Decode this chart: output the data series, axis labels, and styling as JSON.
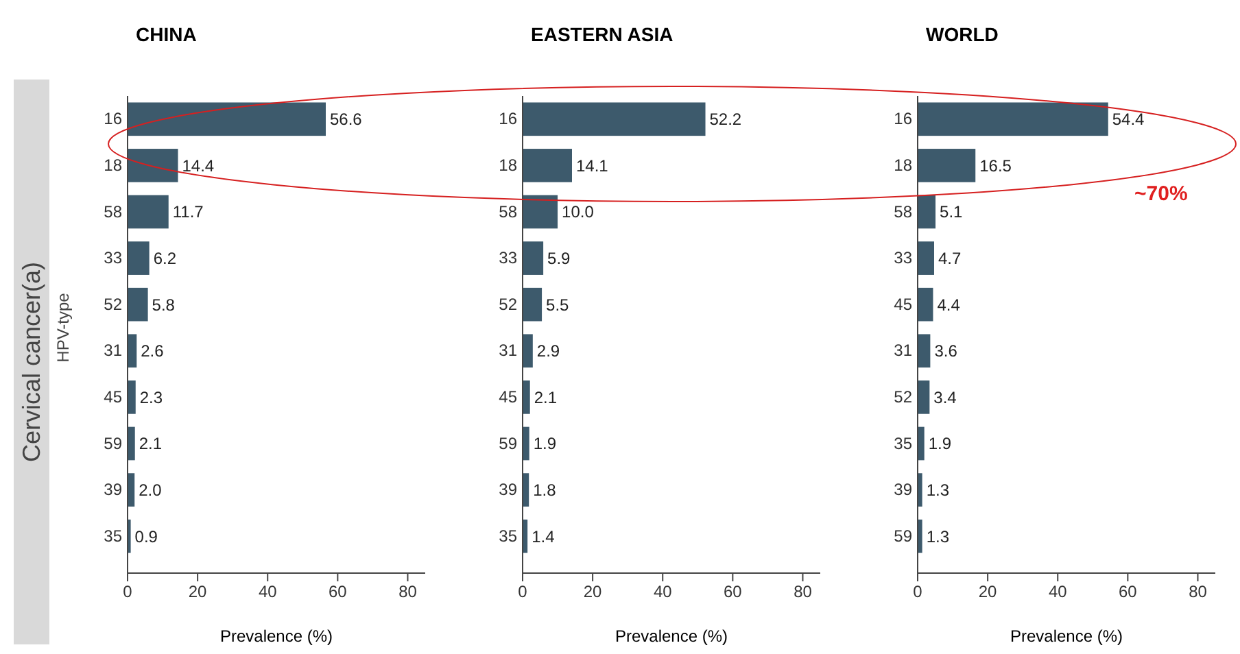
{
  "chart_data": [
    {
      "type": "bar",
      "orientation": "horizontal",
      "title": "CHINA",
      "ylabel": "HPV-type",
      "xlabel": "Prevalence (%)",
      "annotations": [
        "Cervical cancer(a)"
      ],
      "categories": [
        "16",
        "18",
        "58",
        "33",
        "52",
        "31",
        "45",
        "59",
        "39",
        "35"
      ],
      "values": [
        56.6,
        14.4,
        11.7,
        6.2,
        5.8,
        2.6,
        2.3,
        2.1,
        2.0,
        0.9
      ],
      "value_labels": [
        "56.6",
        "14.4",
        "11.7",
        "6.2",
        "5.8",
        "2.6",
        "2.3",
        "2.1",
        "2.0",
        "0.9"
      ],
      "color": "#3d5a6c",
      "xlim": [
        0,
        85
      ],
      "xticks": [
        0,
        20,
        40,
        60,
        80
      ],
      "grid": false
    },
    {
      "type": "bar",
      "orientation": "horizontal",
      "title": "EASTERN ASIA",
      "xlabel": "Prevalence (%)",
      "categories": [
        "16",
        "18",
        "58",
        "33",
        "52",
        "31",
        "45",
        "59",
        "39",
        "35"
      ],
      "values": [
        52.2,
        14.1,
        10.0,
        5.9,
        5.5,
        2.9,
        2.1,
        1.9,
        1.8,
        1.4
      ],
      "value_labels": [
        "52.2",
        "14.1",
        "10.0",
        "5.9",
        "5.5",
        "2.9",
        "2.1",
        "1.9",
        "1.8",
        "1.4"
      ],
      "color": "#3d5a6c",
      "xlim": [
        0,
        85
      ],
      "xticks": [
        0,
        20,
        40,
        60,
        80
      ],
      "grid": false
    },
    {
      "type": "bar",
      "orientation": "horizontal",
      "title": "WORLD",
      "xlabel": "Prevalence (%)",
      "annotations": [
        "~70%"
      ],
      "categories": [
        "16",
        "18",
        "58",
        "33",
        "45",
        "31",
        "52",
        "35",
        "39",
        "59"
      ],
      "values": [
        54.4,
        16.5,
        5.1,
        4.7,
        4.4,
        3.6,
        3.4,
        1.9,
        1.3,
        1.3
      ],
      "value_labels": [
        "54.4",
        "16.5",
        "5.1",
        "4.7",
        "4.4",
        "3.6",
        "3.4",
        "1.9",
        "1.3",
        "1.3"
      ],
      "color": "#3d5a6c",
      "xlim": [
        0,
        85
      ],
      "xticks": [
        0,
        20,
        40,
        60,
        80
      ],
      "grid": false
    }
  ]
}
